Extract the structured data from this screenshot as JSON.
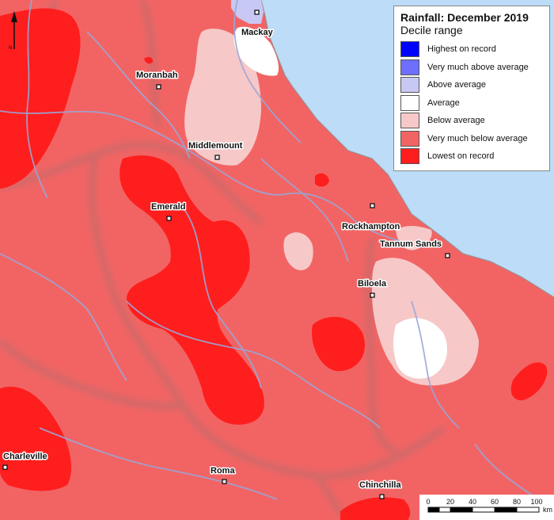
{
  "legend": {
    "title": "Rainfall: December 2019",
    "subtitle": "Decile range",
    "items": [
      {
        "label": "Highest on record",
        "color": "#0000ff"
      },
      {
        "label": "Very much above average",
        "color": "#6e6eff"
      },
      {
        "label": "Above average",
        "color": "#c8c8f5"
      },
      {
        "label": "Average",
        "color": "#ffffff"
      },
      {
        "label": "Below average",
        "color": "#f7c8c8"
      },
      {
        "label": "Very much below average",
        "color": "#f26464"
      },
      {
        "label": "Lowest on record",
        "color": "#ff1e1e"
      }
    ]
  },
  "places": [
    {
      "name": "Mackay"
    },
    {
      "name": "Moranbah"
    },
    {
      "name": "Middlemount"
    },
    {
      "name": "Emerald"
    },
    {
      "name": "Rockhampton"
    },
    {
      "name": "Tannum Sands"
    },
    {
      "name": "Biloela"
    },
    {
      "name": "Charleville"
    },
    {
      "name": "Roma"
    },
    {
      "name": "Chinchilla"
    }
  ],
  "scale": {
    "ticks": [
      "0",
      "20",
      "40",
      "60",
      "80",
      "100"
    ],
    "unit": "km"
  },
  "north_arrow": {
    "label": "N"
  },
  "colors": {
    "ocean": "#bcdcf7",
    "river": "#9aa6d6",
    "boundary": "#888888"
  }
}
